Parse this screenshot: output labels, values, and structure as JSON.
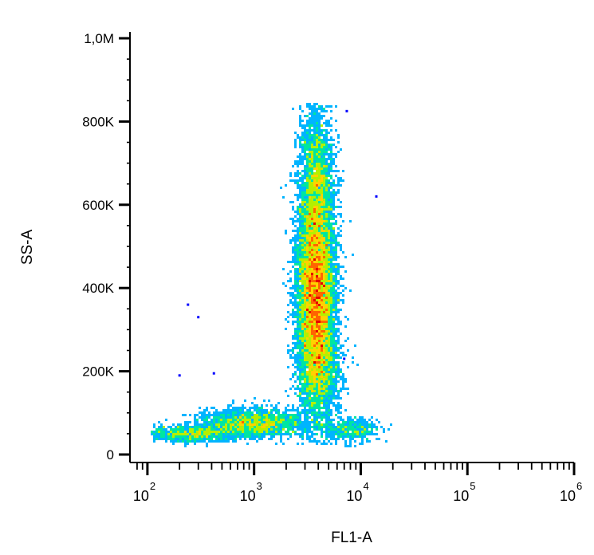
{
  "chart_data": {
    "type": "scatter",
    "subtype": "density-scatter",
    "title": "",
    "xlabel": "FL1-A",
    "ylabel": "SS-A",
    "x_scale": "log",
    "x_range": [
      71,
      1000000
    ],
    "x_major_ticks": [
      100,
      1000,
      10000,
      100000,
      1000000
    ],
    "x_tick_labels": [
      {
        "base": "10",
        "exp": "2"
      },
      {
        "base": "10",
        "exp": "3"
      },
      {
        "base": "10",
        "exp": "4"
      },
      {
        "base": "10",
        "exp": "5"
      },
      {
        "base": "10",
        "exp": "6"
      }
    ],
    "y_scale": "linear",
    "y_range": [
      0,
      1050000
    ],
    "y_major_ticks": [
      0,
      200000,
      400000,
      600000,
      800000,
      1000000
    ],
    "y_tick_labels": [
      "0",
      "200K",
      "400K",
      "600K",
      "800K",
      "1,0M"
    ],
    "grid": false,
    "legend": "none",
    "colormap": [
      "#0000ff",
      "#00b4ff",
      "#00e6a0",
      "#b4f000",
      "#ffd200",
      "#ff6400",
      "#e60000"
    ],
    "series": [
      {
        "population": "main",
        "density_contour_levels_low_to_high": [
          0.08,
          0.2,
          0.4,
          0.6,
          0.8,
          1.0
        ],
        "clusters": [
          {
            "center": [
              3800,
              390000
            ],
            "spread_log10_x": 0.09,
            "spread_y": 120000,
            "weight": 0.55
          },
          {
            "center": [
              3800,
              650000
            ],
            "spread_log10_x": 0.08,
            "spread_y": 90000,
            "weight": 0.15
          },
          {
            "center": [
              4000,
              200000
            ],
            "spread_log10_x": 0.1,
            "spread_y": 60000,
            "weight": 0.1
          }
        ]
      },
      {
        "population": "low",
        "clusters": [
          {
            "center": [
              1000,
              75000
            ],
            "spread_log10_x": 0.25,
            "spread_y": 18000,
            "weight": 0.12
          },
          {
            "center": [
              250,
              50000
            ],
            "spread_log10_x": 0.2,
            "spread_y": 10000,
            "weight": 0.05
          },
          {
            "center": [
              8000,
              60000
            ],
            "spread_log10_x": 0.15,
            "spread_y": 15000,
            "weight": 0.03
          }
        ]
      }
    ],
    "outliers": [
      [
        240,
        360000
      ],
      [
        300,
        330000
      ],
      [
        200,
        190000
      ],
      [
        420,
        195000
      ],
      [
        7400,
        825000
      ],
      [
        14000,
        620000
      ],
      [
        7000,
        230000
      ]
    ]
  }
}
